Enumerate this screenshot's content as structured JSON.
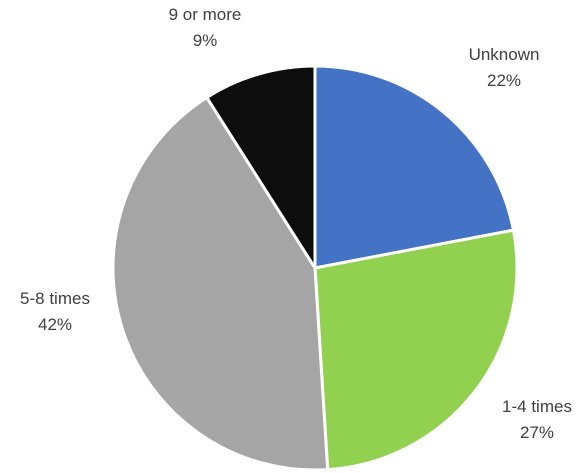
{
  "chart_data": {
    "type": "pie",
    "title": "",
    "categories": [
      "Unknown",
      "1-4 times",
      "5-8 times",
      "9 or more"
    ],
    "values": [
      22,
      27,
      42,
      9
    ],
    "value_labels": [
      "22%",
      "27%",
      "42%",
      "9%"
    ],
    "colors": [
      "#4472C4",
      "#92D050",
      "#A5A5A5",
      "#0D0D0D"
    ],
    "start_angle_deg": 0,
    "direction": "clockwise",
    "legend": "none"
  }
}
